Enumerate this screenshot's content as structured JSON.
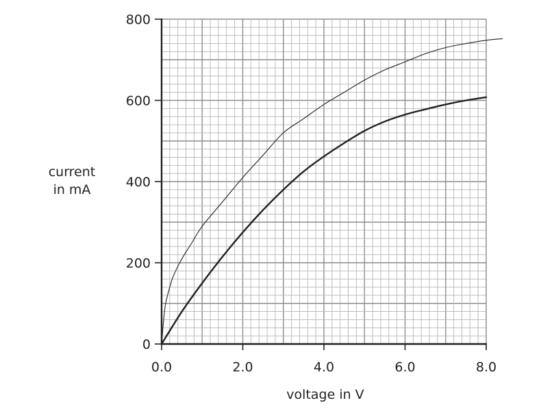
{
  "chart_data": {
    "type": "line",
    "xlabel": "voltage in V",
    "ylabel_lines": [
      "current",
      "in mA"
    ],
    "xlim": [
      0,
      8
    ],
    "ylim": [
      0,
      800
    ],
    "x_ticks": [
      "0.0",
      "2.0",
      "4.0",
      "6.0",
      "8.0"
    ],
    "y_ticks": [
      "0",
      "200",
      "400",
      "600",
      "800"
    ],
    "grid": true,
    "series": [
      {
        "x": [
          0.0,
          0.05,
          0.1,
          0.2,
          0.3,
          0.5,
          0.75,
          1.0,
          1.5,
          2.0,
          2.5,
          3.0,
          3.5,
          4.0,
          4.5,
          5.0,
          5.5,
          6.0,
          6.5,
          7.0,
          7.5,
          8.0,
          8.4
        ],
        "y": [
          0,
          60,
          100,
          140,
          170,
          210,
          250,
          290,
          350,
          410,
          465,
          520,
          555,
          590,
          620,
          650,
          675,
          695,
          715,
          730,
          740,
          748,
          752
        ],
        "color": "#231f20"
      },
      {
        "x": [
          0.0,
          0.5,
          1.0,
          1.5,
          2.0,
          2.5,
          3.0,
          3.5,
          4.0,
          4.5,
          5.0,
          5.5,
          6.0,
          6.5,
          7.0,
          7.5,
          8.0
        ],
        "y": [
          0,
          80,
          150,
          215,
          275,
          330,
          380,
          425,
          462,
          495,
          525,
          548,
          565,
          578,
          590,
          600,
          608
        ],
        "color": "#231f20"
      }
    ]
  }
}
